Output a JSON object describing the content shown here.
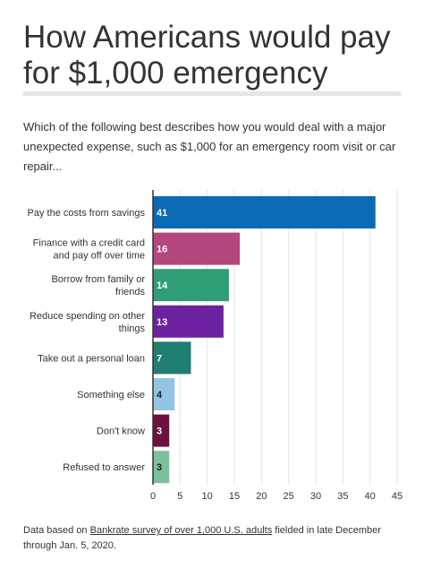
{
  "title": "How Americans would pay for $1,000 emergency",
  "subtitle": "Which of the following best describes how you would deal with a major unexpected expense, such as $1,000 for an emergency room visit or car repair...",
  "footer": {
    "prefix": "Data based on ",
    "link": "Bankrate survey of over 1,000 U.S. adults",
    "suffix": " fielded in late December through Jan. 5, 2020."
  },
  "chart_data": {
    "type": "bar",
    "orientation": "horizontal",
    "categories": [
      "Pay the costs from savings",
      "Finance with a credit card and pay off over time",
      "Borrow from family or friends",
      "Reduce spending on other things",
      "Take out a personal loan",
      "Something else",
      "Don't know",
      "Refused to answer"
    ],
    "category_lines": [
      [
        "Pay the costs from savings"
      ],
      [
        "Finance with a credit card",
        "and pay off over time"
      ],
      [
        "Borrow from family or",
        "friends"
      ],
      [
        "Reduce spending on other",
        "things"
      ],
      [
        "Take out a personal loan"
      ],
      [
        "Something else"
      ],
      [
        "Don't know"
      ],
      [
        "Refused to answer"
      ]
    ],
    "values": [
      41,
      16,
      14,
      13,
      7,
      4,
      3,
      3
    ],
    "colors": [
      "#0a6ab4",
      "#b5477f",
      "#2f9e76",
      "#6b21a0",
      "#1f7d72",
      "#93c4e4",
      "#6e1040",
      "#7cc19a"
    ],
    "label_colors": [
      "#ffffff",
      "#ffffff",
      "#ffffff",
      "#ffffff",
      "#ffffff",
      "#222222",
      "#ffffff",
      "#222222"
    ],
    "xlim": [
      0,
      45
    ],
    "xticks": [
      0,
      5,
      10,
      15,
      20,
      25,
      30,
      35,
      40,
      45
    ],
    "grid": true
  }
}
